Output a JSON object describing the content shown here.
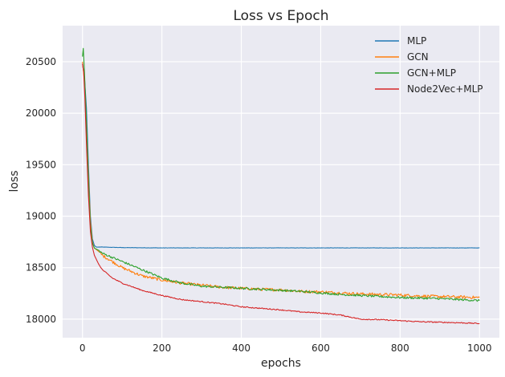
{
  "chart_data": {
    "type": "line",
    "title": "Loss vs Epoch",
    "xlabel": "epochs",
    "ylabel": "loss",
    "xlim": [
      -50,
      1050
    ],
    "ylim": [
      17820,
      20850
    ],
    "xticks": [
      0,
      200,
      400,
      600,
      800,
      1000
    ],
    "yticks": [
      18000,
      18500,
      19000,
      19500,
      20000,
      20500
    ],
    "grid": true,
    "legend_position": "top-right",
    "series": [
      {
        "name": "MLP",
        "color": "#1f77b4",
        "x": [
          0,
          5,
          10,
          15,
          20,
          25,
          30,
          35,
          40,
          50,
          100,
          200,
          300,
          400,
          500,
          600,
          700,
          800,
          900,
          1000
        ],
        "y": [
          20480,
          20350,
          20050,
          19500,
          19000,
          18780,
          18715,
          18700,
          18700,
          18700,
          18695,
          18692,
          18692,
          18692,
          18692,
          18692,
          18692,
          18692,
          18692,
          18692
        ]
      },
      {
        "name": "GCN",
        "color": "#ff7f0e",
        "x": [
          0,
          5,
          10,
          15,
          20,
          25,
          30,
          40,
          50,
          75,
          100,
          150,
          200,
          250,
          300,
          350,
          400,
          450,
          500,
          550,
          600,
          650,
          700,
          750,
          800,
          850,
          900,
          950,
          1000
        ],
        "y": [
          20500,
          20300,
          19900,
          19400,
          18950,
          18750,
          18690,
          18660,
          18620,
          18560,
          18500,
          18420,
          18380,
          18350,
          18330,
          18310,
          18300,
          18290,
          18285,
          18270,
          18265,
          18255,
          18245,
          18240,
          18235,
          18225,
          18220,
          18215,
          18210
        ]
      },
      {
        "name": "GCN+MLP",
        "color": "#2ca02c",
        "x": [
          0,
          2,
          5,
          10,
          15,
          20,
          25,
          30,
          40,
          50,
          75,
          100,
          150,
          200,
          250,
          300,
          350,
          400,
          450,
          500,
          550,
          600,
          650,
          700,
          750,
          800,
          850,
          900,
          950,
          1000
        ],
        "y": [
          20550,
          20630,
          20400,
          19900,
          19350,
          18900,
          18740,
          18690,
          18670,
          18640,
          18600,
          18560,
          18480,
          18400,
          18350,
          18320,
          18310,
          18300,
          18290,
          18280,
          18270,
          18255,
          18240,
          18230,
          18220,
          18210,
          18205,
          18200,
          18190,
          18180
        ]
      },
      {
        "name": "Node2Vec+MLP",
        "color": "#d62728",
        "x": [
          0,
          3,
          6,
          10,
          15,
          20,
          25,
          30,
          40,
          50,
          75,
          100,
          150,
          200,
          250,
          300,
          350,
          400,
          450,
          500,
          550,
          600,
          650,
          700,
          750,
          800,
          850,
          900,
          950,
          1000
        ],
        "y": [
          20480,
          20400,
          20150,
          19700,
          19200,
          18850,
          18700,
          18620,
          18540,
          18480,
          18400,
          18350,
          18280,
          18230,
          18190,
          18170,
          18150,
          18120,
          18105,
          18090,
          18070,
          18060,
          18040,
          18000,
          17995,
          17985,
          17975,
          17970,
          17965,
          17958
        ]
      }
    ]
  }
}
